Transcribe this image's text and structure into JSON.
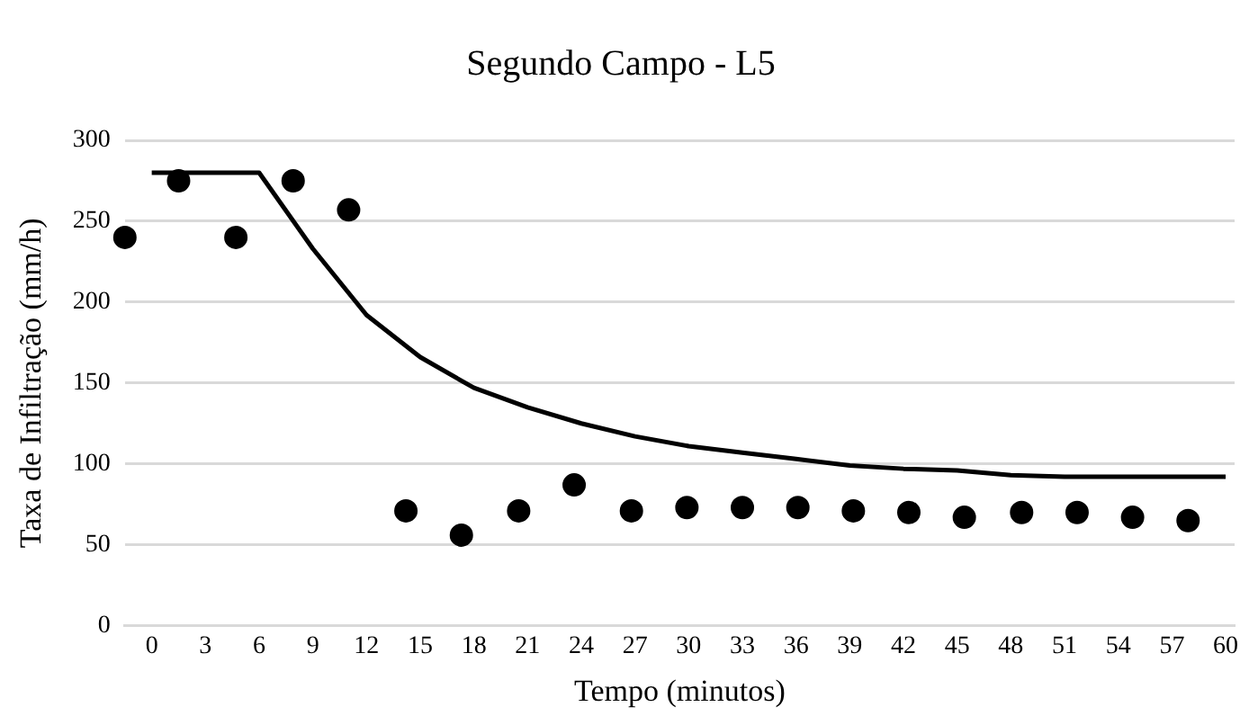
{
  "chart_data": {
    "type": "scatter",
    "title": "Segundo Campo - L5",
    "xlabel": "Tempo (minutos)",
    "ylabel": "Taxa de Infiltração (mm/h)",
    "xlim": [
      -1.5,
      60.5
    ],
    "xticks": [
      0,
      3,
      6,
      9,
      12,
      15,
      18,
      21,
      24,
      27,
      30,
      33,
      36,
      39,
      42,
      45,
      48,
      51,
      54,
      57,
      60
    ],
    "ylim": [
      0,
      300
    ],
    "yticks": [
      0,
      50,
      100,
      150,
      200,
      250,
      300
    ],
    "grid": "y",
    "legend": false,
    "series": [
      {
        "color": "#000000",
        "marker": "circle",
        "x": [
          -1.5,
          1.5,
          4.7,
          7.9,
          11,
          14.2,
          17.3,
          20.5,
          23.6,
          26.8,
          29.9,
          33,
          36.1,
          39.2,
          42.3,
          45.4,
          48.6,
          51.7,
          54.8,
          57.9
        ],
        "values": [
          240,
          275,
          240,
          275,
          257,
          71,
          56,
          71,
          87,
          71,
          73,
          73,
          73,
          71,
          70,
          67,
          70,
          70,
          67,
          65
        ]
      },
      {
        "type": "line",
        "color": "#000000",
        "marker": "none",
        "line_style": "solid",
        "x": [
          0,
          3,
          6,
          9,
          12,
          15,
          18,
          21,
          24,
          27,
          30,
          33,
          36,
          39,
          42,
          45,
          48,
          51,
          54,
          57,
          60
        ],
        "values": [
          280,
          280,
          280,
          233,
          192,
          166,
          147,
          135,
          125,
          117,
          111,
          107,
          103,
          99,
          97,
          96,
          93,
          92,
          92,
          92,
          92
        ]
      }
    ]
  }
}
